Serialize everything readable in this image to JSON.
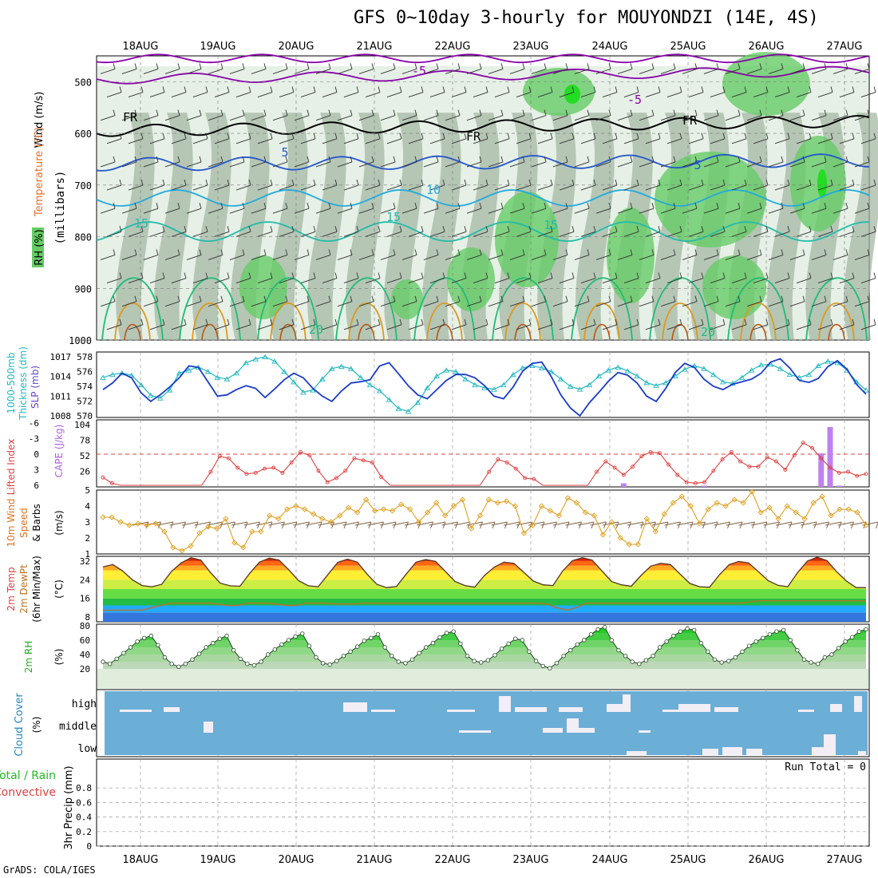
{
  "title": "GFS 0~10day 3-hourly for MOUYONDZI (14E, 4S)",
  "credit": "GrADS: COLA/IGES",
  "colors": {
    "rh_dark": "#9fb39f",
    "rh_mid": "#c8d8c8",
    "rh_light": "#e6f0e6",
    "rh_green": "#66cc66",
    "rh_bright": "#22dd22",
    "temp_purple": "#8800aa",
    "temp_blue": "#2255cc",
    "temp_cyan": "#22aadd",
    "temp_teal": "#22bbaa",
    "temp_green": "#22bb77",
    "temp_orange": "#dd9922",
    "temp_brown": "#bb5511",
    "freeze": "#000000",
    "thickness": "#22b8c0",
    "slp": "#1a3cc8",
    "lifted": "#e04040",
    "cape": "#c080f0",
    "wind_speed": "#e0a020",
    "wind_barb": "#806040",
    "cloud_bg": "#6baed6",
    "cloud_fill": "#f2eef6",
    "rh2m": "#33cc33",
    "dewpt": "#c07020"
  },
  "dates": [
    "18AUG",
    "19AUG",
    "20AUG",
    "21AUG",
    "22AUG",
    "23AUG",
    "24AUG",
    "25AUG",
    "26AUG",
    "27AUG"
  ],
  "panels": {
    "upper": {
      "ylabel_a": "Wind (m/s)",
      "ylabel_b": "Temperature (°C)",
      "ylabel_c": "(millibars)",
      "ylabel_d": "RH (%)",
      "yticks": [
        "500",
        "600",
        "700",
        "800",
        "900",
        "1000"
      ]
    },
    "slp": {
      "label_a": "1000-500mb",
      "label_b": "Thickness (dm)",
      "label_c": "SLP (mb)",
      "left_ticks": [
        "578",
        "576",
        "574",
        "572",
        "570"
      ],
      "right_ticks": [
        "1017",
        "1014",
        "1011",
        "1008"
      ]
    },
    "cape": {
      "label_a": "Lifted Index",
      "label_b": "CAPE (J/kg)",
      "left_ticks": [
        "-6",
        "-3",
        "0",
        "3",
        "6"
      ],
      "right_ticks": [
        "104",
        "78",
        "52",
        "26"
      ]
    },
    "wind10": {
      "label_a": "10m Wind",
      "label_b": "Speed",
      "label_c": "& Barbs",
      "label_d": "(m/s)",
      "yticks": [
        "5",
        "4",
        "3",
        "2",
        "1"
      ]
    },
    "temp2m": {
      "label_a": "2m Temp",
      "label_b": "2m DewPt",
      "label_c": "(6hr Min/Max)",
      "label_d": "(°C)",
      "yticks": [
        "32",
        "24",
        "16",
        "8"
      ]
    },
    "rh2m": {
      "label_a": "2m RH",
      "label_b": "(%)",
      "yticks": [
        "80",
        "60",
        "40",
        "20"
      ]
    },
    "cloud": {
      "label_a": "Cloud Cover",
      "label_b": "(%)",
      "levels": [
        "high",
        "middle",
        "low"
      ]
    },
    "precip": {
      "label_a": "Total / Rain",
      "label_b": "Convective",
      "label_c": "3hr Precip (mm)",
      "run_total": "Run Total = 0",
      "yticks": [
        "0.8",
        "0.6",
        "0.4",
        "0.2",
        "0"
      ]
    }
  },
  "chart_data": [
    {
      "type": "line",
      "name": "isotherms",
      "contour_labels": [
        "-5",
        "-5",
        "FR",
        "FR",
        "FR",
        "5",
        "5",
        "10",
        "15",
        "15",
        "15",
        "20",
        "20"
      ],
      "ylim": [
        450,
        1000
      ]
    },
    {
      "type": "line",
      "title": "",
      "series": [
        {
          "name": "Thickness (dm)",
          "values": [
            575.2,
            575.6,
            575.8,
            575.5,
            574.2,
            572.8,
            572.4,
            573.5,
            575.8,
            576.2,
            576.6,
            576.0,
            575.2,
            575.0,
            575.8,
            577.2,
            577.7,
            578.0,
            577.4,
            576.0,
            574.6,
            573.2,
            573.5,
            575.0,
            576.4,
            576.7,
            576.4,
            575.2,
            574.2,
            573.4,
            572.2,
            571.0,
            570.6,
            571.8,
            573.8,
            575.4,
            576.2,
            576.0,
            575.0,
            574.2,
            573.8,
            573.6,
            574.2,
            575.6,
            576.5,
            576.8,
            576.5,
            576.0,
            575.0,
            574.0,
            573.6,
            574.2,
            575.4,
            576.2,
            576.6,
            576.1,
            575.4,
            574.5,
            574.1,
            574.5,
            575.4,
            576.3,
            576.8,
            576.4,
            575.6,
            574.6,
            574.4,
            575.2,
            576.2,
            576.9,
            577.0,
            576.4,
            575.6,
            575.2,
            575.6,
            576.8,
            577.4,
            577.2,
            576.2,
            574.6,
            573.5
          ]
        },
        {
          "name": "SLP (mb)",
          "values": [
            1012.0,
            1013.0,
            1014.5,
            1013.8,
            1011.5,
            1010.2,
            1011.2,
            1012.4,
            1013.8,
            1015.6,
            1015.4,
            1013.2,
            1011.0,
            1011.2,
            1012.0,
            1012.6,
            1012.2,
            1010.8,
            1012.1,
            1013.5,
            1014.5,
            1013.8,
            1012.2,
            1011.0,
            1010.2,
            1011.8,
            1013.0,
            1013.2,
            1013.5,
            1015.6,
            1016.1,
            1014.4,
            1012.6,
            1011.2,
            1010.6,
            1012.0,
            1013.4,
            1014.3,
            1014.3,
            1013.8,
            1012.6,
            1011.0,
            1010.6,
            1012.4,
            1014.8,
            1016.0,
            1016.2,
            1014.0,
            1011.2,
            1009.2,
            1008.0,
            1010.0,
            1011.6,
            1013.3,
            1014.6,
            1014.2,
            1013.0,
            1011.0,
            1010.2,
            1012.2,
            1014.6,
            1016.0,
            1015.4,
            1013.6,
            1012.5,
            1012.0,
            1012.8,
            1013.2,
            1013.6,
            1014.5,
            1016.2,
            1016.7,
            1015.3,
            1013.4,
            1013.1,
            1013.7,
            1015.5,
            1016.4,
            1015.1,
            1012.8,
            1011.3
          ]
        }
      ],
      "left_ylim": [
        570,
        578
      ],
      "right_ylim": [
        1008,
        1017
      ]
    },
    {
      "type": "bar",
      "series": [
        {
          "name": "Lifted Index",
          "values": [
            4.5,
            5.6,
            6,
            6,
            6,
            6,
            6,
            6,
            6,
            6,
            6,
            6,
            3.4,
            0.4,
            0.8,
            2.6,
            3.8,
            3.6,
            2.8,
            2.6,
            3.6,
            1.6,
            -0.4,
            0.2,
            3.2,
            5.4,
            4.6,
            3.2,
            0.8,
            1.2,
            1.6,
            4.4,
            6,
            6,
            6,
            6,
            6,
            6,
            6,
            6,
            6,
            6,
            6,
            3.4,
            1.0,
            1.6,
            2.8,
            4.6,
            4.8,
            6,
            6,
            6,
            6,
            6,
            6,
            3.4,
            1.4,
            2.6,
            4.0,
            2.4,
            0.4,
            -0.4,
            -0.2,
            2.0,
            4.0,
            5.4,
            5.6,
            5.4,
            3.2,
            1.0,
            -0.4,
            1.4,
            2.4,
            2.4,
            0.6,
            1.4,
            3.0,
            0.2,
            -2.2,
            -1.2,
            0.8,
            2.6,
            3.6,
            3.4,
            4.2,
            3.8
          ]
        },
        {
          "name": "CAPE (J/kg)",
          "values": [
            0,
            0,
            0,
            0,
            0,
            0,
            0,
            0,
            0,
            0,
            0,
            0,
            0,
            0,
            0,
            0,
            0,
            0,
            0,
            0,
            0,
            0,
            0,
            0,
            0,
            0,
            0,
            0,
            0,
            0,
            0,
            0,
            0,
            0,
            0,
            0,
            0,
            0,
            0,
            0,
            0,
            0,
            0,
            0,
            0,
            0,
            0,
            0,
            0,
            0,
            0,
            0,
            0,
            0,
            0,
            0,
            0,
            0,
            6,
            0,
            0,
            0,
            0,
            0,
            0,
            0,
            0,
            2,
            0,
            0,
            0,
            0,
            0,
            0,
            0,
            0,
            0,
            0,
            0,
            0,
            56,
            100,
            2,
            0,
            0,
            0
          ]
        }
      ],
      "left_ylim": [
        -6,
        6
      ],
      "right_ylim": [
        0,
        104
      ]
    },
    {
      "type": "line",
      "series": [
        {
          "name": "10m Wind Speed",
          "values": [
            3.3,
            3.3,
            3.0,
            2.8,
            2.9,
            2.8,
            2.9,
            2.4,
            1.4,
            1.2,
            1.5,
            2.3,
            2.7,
            2.6,
            3.2,
            1.7,
            1.4,
            2.4,
            2.4,
            3.4,
            3.2,
            3.8,
            4.0,
            3.8,
            3.5,
            3.2,
            3.0,
            3.4,
            3.9,
            3.6,
            4.4,
            3.7,
            3.8,
            3.7,
            4.1,
            3.8,
            3.0,
            3.6,
            4.2,
            3.4,
            4.0,
            4.4,
            2.6,
            3.4,
            4.4,
            4.2,
            4.3,
            4.0,
            2.3,
            2.8,
            4.0,
            3.7,
            3.4,
            4.5,
            4.2,
            3.6,
            3.4,
            2.2,
            3.0,
            2.0,
            1.6,
            1.6,
            3.2,
            2.4,
            3.5,
            4.2,
            4.6,
            4.0,
            2.9,
            3.8,
            4.2,
            4.0,
            4.4,
            4.2,
            4.9,
            3.6,
            3.9,
            3.2,
            4.0,
            3.6,
            3.2,
            4.2,
            4.6,
            3.4,
            3.8,
            3.8,
            3.6,
            2.8
          ]
        }
      ],
      "ylim": [
        1,
        5
      ]
    },
    {
      "type": "area",
      "series": [
        {
          "name": "2m Temp",
          "values": [
            29.5,
            30.5,
            27.8,
            24.0,
            21.5,
            21.0,
            22.0,
            27.5,
            31.2,
            33.4,
            32.4,
            27.0,
            22.5,
            21.4,
            21.2,
            26.7,
            31.5,
            33.2,
            32.4,
            28.2,
            23.6,
            21.4,
            21.0,
            26.2,
            31.4,
            32.8,
            31.5,
            26.4,
            22.0,
            20.6,
            21.1,
            26.4,
            31.5,
            32.6,
            31.8,
            27.5,
            23.2,
            21.5,
            20.8,
            25.8,
            29.4,
            31.5,
            31.0,
            27.2,
            23.4,
            21.8,
            21.5,
            27.8,
            32.2,
            33.4,
            32.4,
            27.8,
            23.2,
            21.8,
            21.2,
            25.8,
            29.8,
            31.0,
            30.5,
            26.4,
            22.4,
            21.0,
            20.8,
            26.0,
            30.4,
            31.8,
            31.2,
            27.4,
            23.6,
            21.6,
            21.0,
            27.0,
            32.0,
            33.6,
            32.2,
            27.4,
            23.4,
            20.6,
            20.6
          ]
        },
        {
          "name": "2m DewPt",
          "values": [
            11,
            11,
            11,
            11,
            11,
            12,
            13,
            14,
            14,
            14,
            14,
            14,
            13.5,
            13,
            13,
            14,
            14,
            14,
            13.5,
            13,
            13,
            14,
            14,
            14,
            13.6,
            13.6,
            13.6,
            14,
            14,
            14,
            14,
            14,
            14,
            14,
            14,
            14,
            14,
            14,
            14,
            14,
            14,
            14,
            14,
            14,
            14,
            14,
            13.6,
            12,
            11,
            12,
            14,
            14,
            14,
            14,
            14,
            14,
            14,
            14,
            14,
            14,
            14,
            14,
            14,
            14,
            14,
            14,
            14,
            14.5,
            15,
            15,
            15,
            15,
            15,
            15,
            15,
            15,
            15,
            15,
            15,
            15
          ]
        }
      ],
      "ylim": [
        8,
        34
      ]
    },
    {
      "type": "area",
      "series": [
        {
          "name": "2m RH",
          "values": [
            30,
            27,
            34,
            42,
            50,
            58,
            63,
            66,
            53,
            36,
            27,
            23,
            27,
            33,
            41,
            50,
            56,
            62,
            66,
            46,
            34,
            27,
            25,
            30,
            40,
            47,
            54,
            60,
            65,
            69,
            52,
            36,
            28,
            26,
            31,
            38,
            44,
            51,
            59,
            63,
            68,
            50,
            38,
            30,
            28,
            33,
            42,
            50,
            56,
            64,
            70,
            72,
            55,
            38,
            31,
            29,
            32,
            39,
            48,
            55,
            62,
            60,
            44,
            31,
            24,
            21,
            28,
            38,
            46,
            54,
            60,
            68,
            75,
            78,
            60,
            46,
            38,
            30,
            27,
            32,
            38,
            50,
            58,
            66,
            72,
            76,
            74,
            56,
            44,
            33,
            29,
            31,
            36,
            44,
            52,
            58,
            63,
            68,
            72,
            74,
            60,
            46,
            33,
            29,
            27,
            36,
            40,
            49,
            58,
            64,
            72,
            75
          ]
        }
      ],
      "ylim": [
        0,
        80
      ]
    },
    {
      "type": "bar",
      "name": "precip",
      "values": [],
      "ylim": [
        0,
        1
      ]
    }
  ]
}
